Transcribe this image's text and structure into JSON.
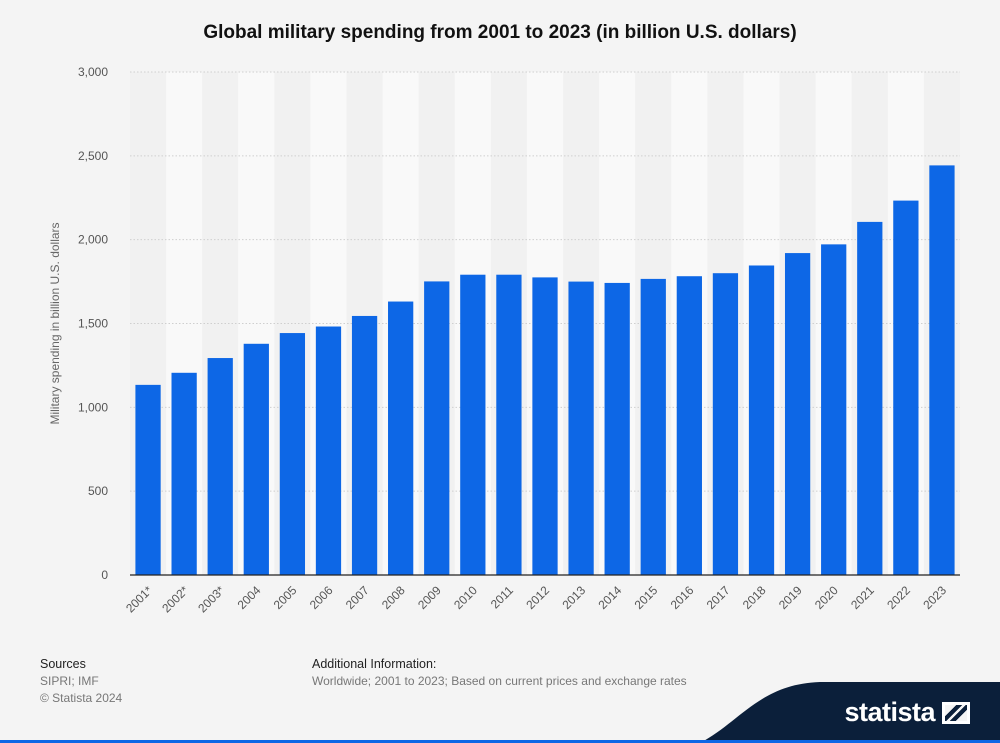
{
  "chart_data": {
    "type": "bar",
    "title": "Global military spending from 2001 to 2023 (in billion U.S. dollars)",
    "xlabel": "",
    "ylabel": "Military spending in billion U.S. dollars",
    "ylim": [
      0,
      3000
    ],
    "yticks": [
      0,
      500,
      1000,
      1500,
      2000,
      2500,
      3000
    ],
    "ytick_labels": [
      "0",
      "500",
      "1,000",
      "1,500",
      "2,000",
      "2,500",
      "3,000"
    ],
    "categories": [
      "2001*",
      "2002*",
      "2003*",
      "2004",
      "2005",
      "2006",
      "2007",
      "2008",
      "2009",
      "2010",
      "2011",
      "2012",
      "2013",
      "2014",
      "2015",
      "2016",
      "2017",
      "2018",
      "2019",
      "2020",
      "2021",
      "2022",
      "2023"
    ],
    "values": [
      1134,
      1206,
      1294,
      1379,
      1443,
      1482,
      1545,
      1631,
      1751,
      1791,
      1791,
      1775,
      1750,
      1742,
      1766,
      1782,
      1800,
      1846,
      1920,
      1972,
      2106,
      2233,
      2443
    ],
    "bar_color": "#0d67e6",
    "grid": true
  },
  "footer": {
    "sources_heading": "Sources",
    "sources_line1": "SIPRI; IMF",
    "sources_line2": "© Statista 2024",
    "additional_heading": "Additional Information:",
    "additional_text": "Worldwide; 2001 to 2023; Based on current prices and exchange rates"
  },
  "brand": {
    "name": "statista"
  }
}
